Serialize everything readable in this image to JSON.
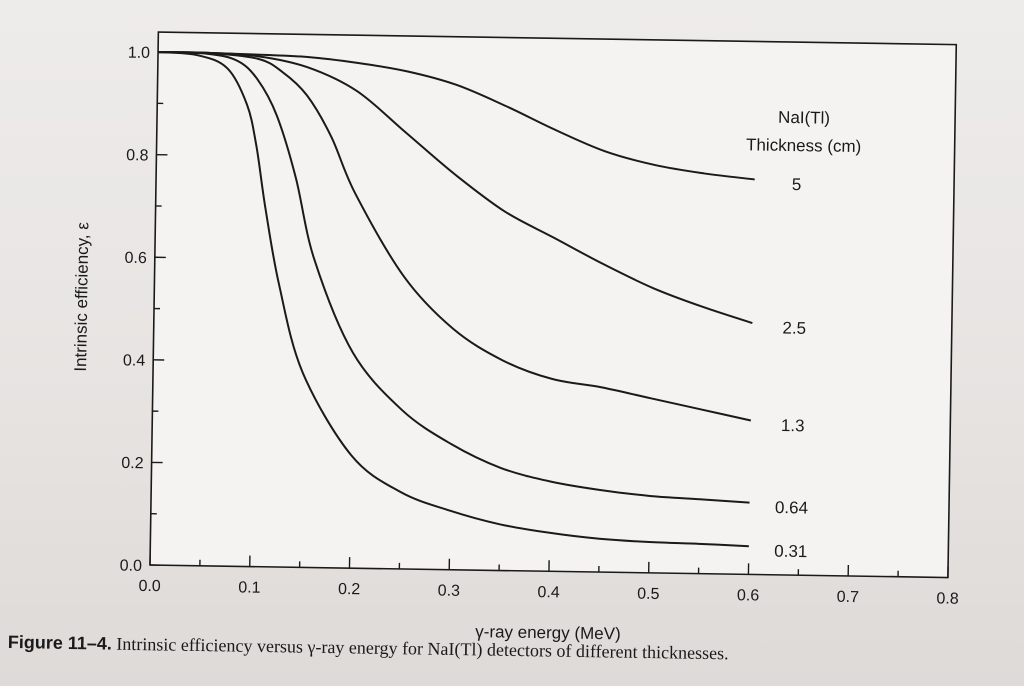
{
  "chart_data": {
    "type": "line",
    "xlabel": "γ-ray energy (MeV)",
    "ylabel": "Intrinsic efficiency, ε",
    "xlim": [
      0.0,
      0.8
    ],
    "ylim": [
      0.0,
      1.0
    ],
    "x_ticks": [
      "0.0",
      "0.1",
      "0.2",
      "0.3",
      "0.4",
      "0.5",
      "0.6",
      "0.7",
      "0.8"
    ],
    "y_ticks": [
      "0.0",
      "0.2",
      "0.4",
      "0.6",
      "0.8",
      "1.0"
    ],
    "grid": false,
    "legend_title_line1": "NaI(Tl)",
    "legend_title_line2": "Thickness (cm)",
    "legend_placement": "top-right",
    "series": [
      {
        "name": "5",
        "x": [
          0.0,
          0.05,
          0.1,
          0.15,
          0.2,
          0.25,
          0.3,
          0.35,
          0.4,
          0.45,
          0.5,
          0.55,
          0.6
        ],
        "values": [
          1.0,
          1.0,
          0.998,
          0.995,
          0.985,
          0.97,
          0.945,
          0.905,
          0.86,
          0.82,
          0.795,
          0.78,
          0.77
        ]
      },
      {
        "name": "2.5",
        "x": [
          0.0,
          0.05,
          0.1,
          0.15,
          0.2,
          0.25,
          0.3,
          0.35,
          0.4,
          0.45,
          0.5,
          0.55,
          0.6
        ],
        "values": [
          1.0,
          1.0,
          0.995,
          0.975,
          0.93,
          0.85,
          0.77,
          0.7,
          0.65,
          0.6,
          0.555,
          0.52,
          0.49
        ]
      },
      {
        "name": "1.3",
        "x": [
          0.0,
          0.05,
          0.1,
          0.125,
          0.15,
          0.175,
          0.2,
          0.25,
          0.3,
          0.35,
          0.4,
          0.45,
          0.5,
          0.55,
          0.6
        ],
        "values": [
          1.0,
          1.0,
          0.99,
          0.965,
          0.92,
          0.84,
          0.73,
          0.57,
          0.47,
          0.41,
          0.375,
          0.36,
          0.34,
          0.32,
          0.3
        ]
      },
      {
        "name": "0.64",
        "x": [
          0.0,
          0.05,
          0.08,
          0.1,
          0.12,
          0.14,
          0.16,
          0.2,
          0.25,
          0.3,
          0.35,
          0.4,
          0.45,
          0.5,
          0.55,
          0.6
        ],
        "values": [
          1.0,
          0.998,
          0.985,
          0.95,
          0.88,
          0.76,
          0.6,
          0.42,
          0.31,
          0.245,
          0.2,
          0.175,
          0.16,
          0.15,
          0.145,
          0.14
        ]
      },
      {
        "name": "0.31",
        "x": [
          0.0,
          0.04,
          0.07,
          0.09,
          0.1,
          0.11,
          0.125,
          0.15,
          0.2,
          0.25,
          0.3,
          0.35,
          0.4,
          0.45,
          0.5,
          0.55,
          0.6
        ],
        "values": [
          1.0,
          0.995,
          0.97,
          0.9,
          0.82,
          0.7,
          0.55,
          0.38,
          0.22,
          0.15,
          0.115,
          0.09,
          0.075,
          0.065,
          0.06,
          0.058,
          0.055
        ]
      }
    ]
  },
  "caption": {
    "label": "Figure 11–4.",
    "text": " Intrinsic efficiency versus γ-ray energy for NaI(Tl) detectors of different thicknesses."
  }
}
